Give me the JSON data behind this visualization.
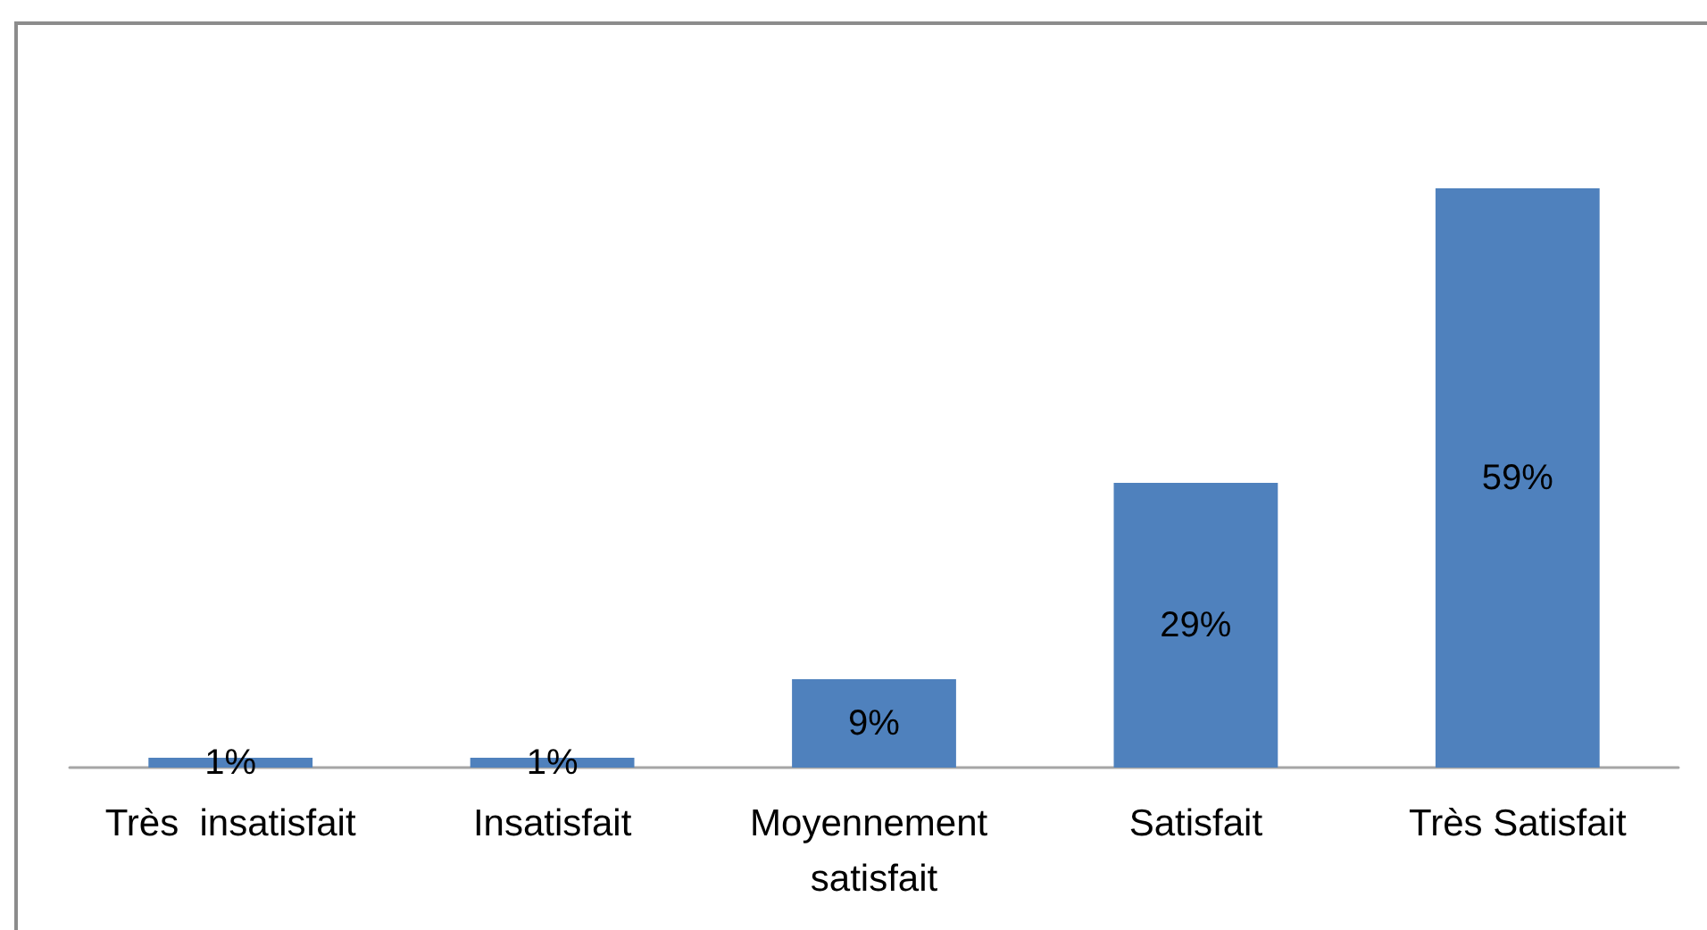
{
  "chart_data": {
    "type": "bar",
    "categories": [
      "Très  insatisfait",
      "Insatisfait",
      "Moyennement satisfait",
      "Satisfait",
      "Très Satisfait"
    ],
    "values": [
      1,
      1,
      9,
      29,
      59
    ],
    "value_labels": [
      "1%",
      "1%",
      "9%",
      "29%",
      "59%"
    ],
    "color": "#4f81bd"
  }
}
